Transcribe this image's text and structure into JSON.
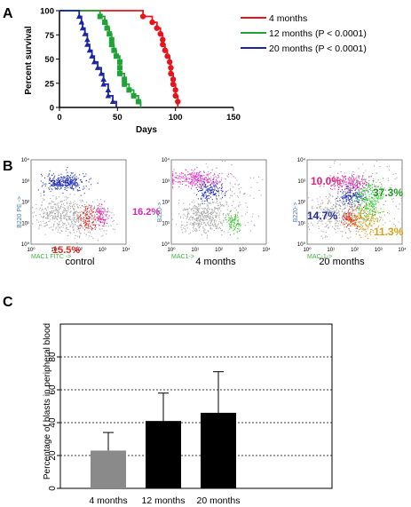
{
  "panel_labels": {
    "a": "A",
    "b": "B",
    "c": "C"
  },
  "chart_data": [
    {
      "type": "line",
      "title": "",
      "xlabel": "Days",
      "ylabel": "Percent survival",
      "xlim": [
        0,
        150
      ],
      "ylim": [
        0,
        100
      ],
      "x_ticks": [
        "0",
        "50",
        "100",
        "150"
      ],
      "y_ticks": [
        "0",
        "25",
        "50",
        "75",
        "100"
      ],
      "legend_position": "top-right",
      "series": [
        {
          "name": "4 months",
          "color": "#e8141b",
          "marker": "circle",
          "steps": [
            [
              0,
              100
            ],
            [
              72,
              100
            ],
            [
              72,
              94
            ],
            [
              80,
              94
            ],
            [
              80,
              88
            ],
            [
              84,
              88
            ],
            [
              84,
              82
            ],
            [
              87,
              82
            ],
            [
              87,
              76
            ],
            [
              89,
              76
            ],
            [
              89,
              65
            ],
            [
              91,
              65
            ],
            [
              91,
              59
            ],
            [
              93,
              59
            ],
            [
              93,
              53
            ],
            [
              95,
              53
            ],
            [
              95,
              47
            ],
            [
              96,
              47
            ],
            [
              96,
              35
            ],
            [
              98,
              35
            ],
            [
              98,
              24
            ],
            [
              100,
              24
            ],
            [
              100,
              12
            ],
            [
              102,
              12
            ],
            [
              102,
              0
            ]
          ],
          "markers": [
            [
              72,
              94
            ],
            [
              80,
              88
            ],
            [
              84,
              82
            ],
            [
              87,
              76
            ],
            [
              89,
              70
            ],
            [
              89,
              65
            ],
            [
              91,
              59
            ],
            [
              93,
              53
            ],
            [
              95,
              47
            ],
            [
              96,
              41
            ],
            [
              96,
              35
            ],
            [
              98,
              29
            ],
            [
              98,
              24
            ],
            [
              100,
              18
            ],
            [
              100,
              12
            ],
            [
              102,
              6
            ]
          ]
        },
        {
          "name": "12 months (P < 0.0001)",
          "color": "#1ea337",
          "marker": "square",
          "steps": [
            [
              0,
              100
            ],
            [
              35,
              100
            ],
            [
              35,
              94
            ],
            [
              39,
              94
            ],
            [
              39,
              88
            ],
            [
              41,
              88
            ],
            [
              41,
              82
            ],
            [
              43,
              82
            ],
            [
              43,
              76
            ],
            [
              45,
              76
            ],
            [
              45,
              65
            ],
            [
              47,
              65
            ],
            [
              47,
              59
            ],
            [
              49,
              59
            ],
            [
              49,
              53
            ],
            [
              52,
              53
            ],
            [
              52,
              35
            ],
            [
              56,
              35
            ],
            [
              56,
              24
            ],
            [
              60,
              24
            ],
            [
              60,
              18
            ],
            [
              64,
              18
            ],
            [
              64,
              12
            ],
            [
              68,
              12
            ],
            [
              68,
              6
            ],
            [
              70,
              6
            ],
            [
              70,
              0
            ]
          ],
          "markers": [
            [
              35,
              94
            ],
            [
              39,
              88
            ],
            [
              41,
              82
            ],
            [
              43,
              76
            ],
            [
              45,
              70
            ],
            [
              45,
              65
            ],
            [
              47,
              59
            ],
            [
              49,
              53
            ],
            [
              52,
              47
            ],
            [
              52,
              41
            ],
            [
              52,
              35
            ],
            [
              56,
              29
            ],
            [
              56,
              24
            ],
            [
              60,
              18
            ],
            [
              64,
              12
            ],
            [
              68,
              6
            ]
          ]
        },
        {
          "name": "20 months (P < 0.0001)",
          "color": "#1a24a8",
          "marker": "triangle",
          "steps": [
            [
              0,
              100
            ],
            [
              17,
              100
            ],
            [
              17,
              94
            ],
            [
              19,
              94
            ],
            [
              19,
              88
            ],
            [
              20,
              88
            ],
            [
              20,
              82
            ],
            [
              22,
              82
            ],
            [
              22,
              76
            ],
            [
              24,
              76
            ],
            [
              24,
              65
            ],
            [
              26,
              65
            ],
            [
              26,
              59
            ],
            [
              28,
              59
            ],
            [
              28,
              53
            ],
            [
              30,
              53
            ],
            [
              30,
              47
            ],
            [
              33,
              47
            ],
            [
              33,
              41
            ],
            [
              36,
              41
            ],
            [
              36,
              35
            ],
            [
              38,
              35
            ],
            [
              38,
              24
            ],
            [
              42,
              24
            ],
            [
              42,
              12
            ],
            [
              46,
              12
            ],
            [
              46,
              6
            ],
            [
              49,
              6
            ],
            [
              49,
              0
            ]
          ],
          "markers": [
            [
              17,
              94
            ],
            [
              19,
              88
            ],
            [
              20,
              82
            ],
            [
              22,
              76
            ],
            [
              24,
              70
            ],
            [
              24,
              65
            ],
            [
              26,
              59
            ],
            [
              28,
              53
            ],
            [
              30,
              47
            ],
            [
              33,
              41
            ],
            [
              36,
              35
            ],
            [
              38,
              29
            ],
            [
              38,
              24
            ],
            [
              42,
              18
            ],
            [
              42,
              12
            ],
            [
              46,
              6
            ]
          ]
        }
      ]
    },
    {
      "type": "scatter",
      "plot_label": "control",
      "ylabel": "B220 PE ->",
      "xlabel": "MAC1 FITC ->",
      "axis_ticks": [
        "10⁰",
        "10¹",
        "10²",
        "10³",
        "10⁴"
      ],
      "populations": [
        {
          "label": "34.5%",
          "color": "#2231b8"
        },
        {
          "label": "16.2%",
          "color": "#e020b0"
        },
        {
          "label": "15.5%",
          "color": "#e8281e"
        }
      ]
    },
    {
      "type": "scatter",
      "plot_label": "4 months",
      "ylabel": "B220->",
      "xlabel": "MAC1->",
      "axis_ticks": [
        "10⁰",
        "10¹",
        "10²",
        "10³",
        "10⁴"
      ],
      "populations": []
    },
    {
      "type": "scatter",
      "plot_label": "20 months",
      "ylabel": "B220->",
      "xlabel": "MAC-1->",
      "axis_ticks": [
        "10⁰",
        "10¹",
        "10²",
        "10³",
        "10⁴"
      ],
      "populations": [
        {
          "label": "10.0%",
          "color": "#e0207a"
        },
        {
          "label": "37.3%",
          "color": "#1e9a1e"
        },
        {
          "label": "14.7%",
          "color": "#202a9a"
        },
        {
          "label": "11.3%",
          "color": "#d4a21a"
        }
      ]
    },
    {
      "type": "bar",
      "ylabel": "Percentage of blasts in peripheral blood",
      "categories": [
        "4 months",
        "12 months",
        "20 months"
      ],
      "values": [
        23,
        41,
        46
      ],
      "errors": [
        11,
        17,
        25
      ],
      "colors": [
        "#8a8a8a",
        "#000000",
        "#000000"
      ],
      "ylim": [
        0,
        100
      ],
      "y_ticks": [
        "0",
        "20",
        "40",
        "60",
        "80"
      ],
      "grid": "dashed horizontal at 20, 40, 60, 80"
    }
  ]
}
